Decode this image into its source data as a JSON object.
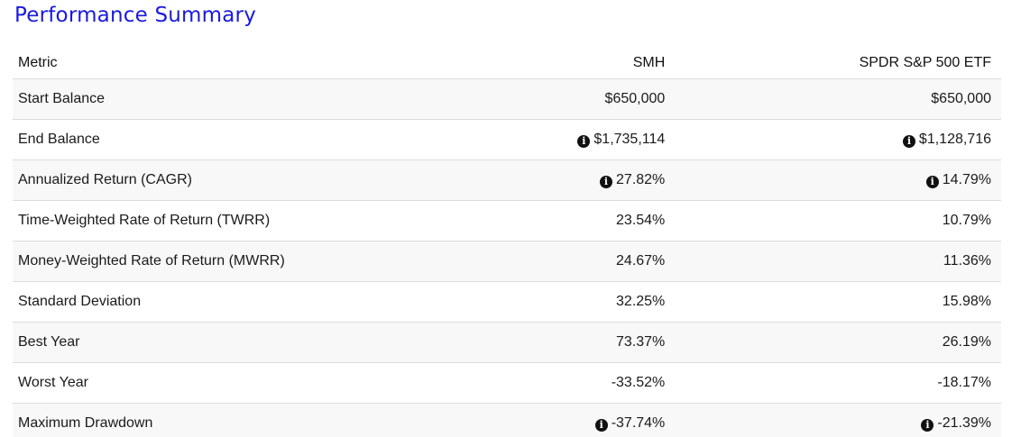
{
  "title": "Performance Summary",
  "table": {
    "headers": {
      "metric": "Metric",
      "col1": "SMH",
      "col2": "SPDR S&P 500 ETF"
    },
    "rows": [
      {
        "metric": "Start Balance",
        "col1": "$650,000",
        "col2": "$650,000",
        "info": false
      },
      {
        "metric": "End Balance",
        "col1": "$1,735,114",
        "col2": "$1,128,716",
        "info": true
      },
      {
        "metric": "Annualized Return (CAGR)",
        "col1": "27.82%",
        "col2": "14.79%",
        "info": true
      },
      {
        "metric": "Time-Weighted Rate of Return (TWRR)",
        "col1": "23.54%",
        "col2": "10.79%",
        "info": false
      },
      {
        "metric": "Money-Weighted Rate of Return (MWRR)",
        "col1": "24.67%",
        "col2": "11.36%",
        "info": false
      },
      {
        "metric": "Standard Deviation",
        "col1": "32.25%",
        "col2": "15.98%",
        "info": false
      },
      {
        "metric": "Best Year",
        "col1": "73.37%",
        "col2": "26.19%",
        "info": false
      },
      {
        "metric": "Worst Year",
        "col1": "-33.52%",
        "col2": "-18.17%",
        "info": false
      },
      {
        "metric": "Maximum Drawdown",
        "col1": "-37.74%",
        "col2": "-21.39%",
        "info": true
      }
    ]
  },
  "icons": {
    "info": "info-circle-icon"
  },
  "colors": {
    "title": "#1a1adc",
    "row_stripe": "#f8f8f8",
    "divider": "#dcdcdc"
  }
}
